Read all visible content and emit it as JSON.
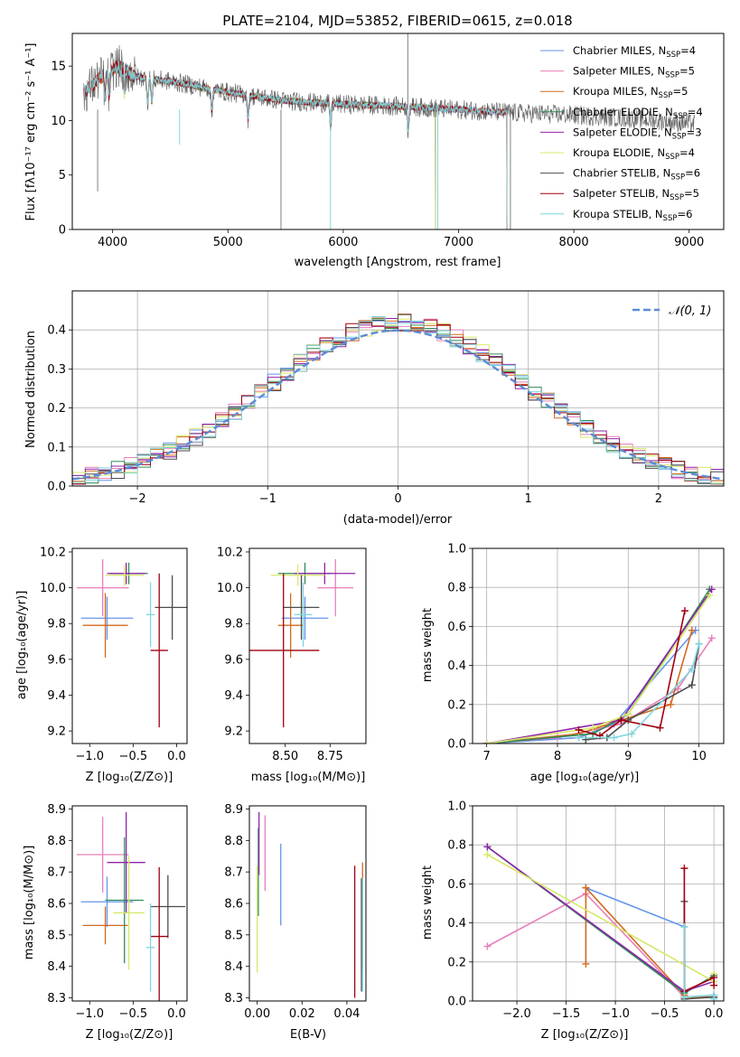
{
  "colors": {
    "Chabrier MILES": "#6495ed",
    "Salpeter MILES": "#e87fb8",
    "Kroupa MILES": "#d2691e",
    "Chabrier ELODIE": "#2e8b57",
    "Salpeter ELODIE": "#8e24aa",
    "Kroupa ELODIE": "#d7e86a",
    "Chabrier STELIB": "#4d4d4d",
    "Salpeter STELIB": "#a00010",
    "Kroupa STELIB": "#7fd6dc"
  },
  "chart_data": [
    {
      "id": "spectrum",
      "type": "line",
      "title": "PLATE=2104, MJD=53852, FIBERID=0615, z=0.018",
      "xlabel": "wavelength [Angstrom, rest frame]",
      "ylabel": "Flux [fλ10⁻¹⁷ erg cm⁻² s⁻¹ A⁻¹]",
      "xlim": [
        3650,
        9300
      ],
      "ylim": [
        0,
        18
      ],
      "xticks": [
        4000,
        5000,
        6000,
        7000,
        8000,
        9000
      ],
      "yticks": [
        0,
        5,
        10,
        15
      ],
      "continuum": {
        "x": [
          3750,
          3900,
          4050,
          4200,
          4500,
          4800,
          5000,
          5500,
          6000,
          6500,
          7000,
          7500,
          8000,
          8500,
          9050
        ],
        "y": [
          12.5,
          14.0,
          15.0,
          14.0,
          13.6,
          13.0,
          12.6,
          11.8,
          11.5,
          11.3,
          11.0,
          10.7,
          10.5,
          10.2,
          9.7
        ]
      },
      "series_ranges": [
        {
          "name": "Chabrier MILES",
          "xmin": 3750,
          "xmax": 7420
        },
        {
          "name": "Salpeter MILES",
          "xmin": 3750,
          "xmax": 7420
        },
        {
          "name": "Kroupa MILES",
          "xmin": 3750,
          "xmax": 7420
        },
        {
          "name": "Chabrier ELODIE",
          "xmin": 4050,
          "xmax": 6800
        },
        {
          "name": "Salpeter ELODIE",
          "xmin": 4050,
          "xmax": 6800
        },
        {
          "name": "Kroupa ELODIE",
          "xmin": 4050,
          "xmax": 6800
        },
        {
          "name": "Chabrier STELIB",
          "xmin": 3750,
          "xmax": 9050
        },
        {
          "name": "Salpeter STELIB",
          "xmin": 3750,
          "xmax": 7420
        },
        {
          "name": "Kroupa STELIB",
          "xmin": 3750,
          "xmax": 7420
        }
      ],
      "legend": [
        {
          "name": "Chabrier MILES",
          "nssp": "4"
        },
        {
          "name": "Salpeter MILES",
          "nssp": "5"
        },
        {
          "name": "Kroupa MILES",
          "nssp": "5"
        },
        {
          "name": "Chabrier ELODIE",
          "nssp": "4"
        },
        {
          "name": "Salpeter ELODIE",
          "nssp": "3"
        },
        {
          "name": "Kroupa ELODIE",
          "nssp": "4"
        },
        {
          "name": "Chabrier STELIB",
          "nssp": "6"
        },
        {
          "name": "Salpeter STELIB",
          "nssp": "5"
        },
        {
          "name": "Kroupa STELIB",
          "nssp": "6"
        }
      ],
      "legend_position": "upper right"
    },
    {
      "id": "residuals",
      "type": "histogram",
      "xlabel": "(data-model)/error",
      "ylabel": "Normed distribution",
      "xlim": [
        -2.5,
        2.5
      ],
      "ylim": [
        0,
        0.5
      ],
      "xticks": [
        -2,
        -1,
        0,
        1,
        2
      ],
      "xtick_labels": [
        "−2",
        "−1",
        "0",
        "1",
        "2"
      ],
      "yticks": [
        0.0,
        0.1,
        0.2,
        0.3,
        0.4
      ],
      "bin_width": 0.1,
      "gaussian_label": "𝒩(0, 1)",
      "legend_position": "upper right",
      "grid": true
    },
    {
      "id": "age-vs-Z",
      "type": "errorbar",
      "xlabel": "Z [log₁₀(Z/Z⊙)]",
      "ylabel": "age  [log₁₀(age/yr)]",
      "xlim": [
        -1.2,
        0.12
      ],
      "ylim": [
        9.13,
        10.22
      ],
      "xticks": [
        -1.0,
        -0.5,
        0.0
      ],
      "xtick_labels": [
        "−1.0",
        "−0.5",
        "0.0"
      ],
      "yticks": [
        9.2,
        9.4,
        9.6,
        9.8,
        10.0,
        10.2
      ],
      "points": [
        {
          "name": "Chabrier MILES",
          "x": -0.8,
          "xerr": 0.3,
          "y": 9.83,
          "yerr": 0.12
        },
        {
          "name": "Salpeter MILES",
          "x": -0.85,
          "xerr": 0.3,
          "y": 10.0,
          "yerr": 0.16
        },
        {
          "name": "Kroupa MILES",
          "x": -0.82,
          "xerr": 0.26,
          "y": 9.79,
          "yerr": 0.18
        },
        {
          "name": "Chabrier ELODIE",
          "x": -0.55,
          "xerr": 0.22,
          "y": 10.08,
          "yerr": 0.06
        },
        {
          "name": "Salpeter ELODIE",
          "x": -0.58,
          "xerr": 0.22,
          "y": 10.08,
          "yerr": 0.06
        },
        {
          "name": "Kroupa ELODIE",
          "x": -0.6,
          "xerr": 0.22,
          "y": 10.07,
          "yerr": 0.06
        },
        {
          "name": "Chabrier STELIB",
          "x": -0.05,
          "xerr": 0.2,
          "y": 9.89,
          "yerr": 0.18
        },
        {
          "name": "Salpeter STELIB",
          "x": -0.2,
          "xerr": 0.1,
          "y": 9.65,
          "yerr": 0.43
        },
        {
          "name": "Kroupa STELIB",
          "x": -0.3,
          "xerr": 0.05,
          "y": 9.85,
          "yerr": 0.18
        }
      ]
    },
    {
      "id": "age-vs-mass",
      "type": "errorbar",
      "xlabel": "mass [log₁₀(M/M⊙)]",
      "ylabel": "",
      "xlim": [
        8.3,
        8.95
      ],
      "ylim": [
        9.13,
        10.22
      ],
      "xticks": [
        8.5,
        8.75
      ],
      "xtick_labels": [
        "8.50",
        "8.75"
      ],
      "yticks": [
        9.2,
        9.4,
        9.6,
        9.8,
        10.0,
        10.2
      ],
      "points": [
        {
          "name": "Chabrier MILES",
          "x": 8.61,
          "xerr": 0.13,
          "y": 9.83,
          "yerr": 0.12
        },
        {
          "name": "Salpeter MILES",
          "x": 8.78,
          "xerr": 0.1,
          "y": 10.0,
          "yerr": 0.16
        },
        {
          "name": "Kroupa MILES",
          "x": 8.53,
          "xerr": 0.07,
          "y": 9.79,
          "yerr": 0.18
        },
        {
          "name": "Chabrier ELODIE",
          "x": 8.61,
          "xerr": 0.15,
          "y": 10.08,
          "yerr": 0.06
        },
        {
          "name": "Salpeter ELODIE",
          "x": 8.72,
          "xerr": 0.17,
          "y": 10.08,
          "yerr": 0.06
        },
        {
          "name": "Kroupa ELODIE",
          "x": 8.57,
          "xerr": 0.15,
          "y": 10.07,
          "yerr": 0.06
        },
        {
          "name": "Chabrier STELIB",
          "x": 8.59,
          "xerr": 0.1,
          "y": 9.89,
          "yerr": 0.18
        },
        {
          "name": "Salpeter STELIB",
          "x": 8.49,
          "xerr": 0.2,
          "y": 9.65,
          "yerr": 0.43
        },
        {
          "name": "Kroupa STELIB",
          "x": 8.6,
          "xerr": 0.05,
          "y": 9.85,
          "yerr": 0.18
        }
      ]
    },
    {
      "id": "mass-weight-vs-age",
      "type": "line",
      "xlabel": "age  [log₁₀(age/yr)]",
      "ylabel": "mass weight",
      "xlim": [
        6.8,
        10.35
      ],
      "ylim": [
        0,
        1.0
      ],
      "xticks": [
        7,
        8,
        9,
        10
      ],
      "yticks": [
        0.0,
        0.2,
        0.4,
        0.6,
        0.8,
        1.0
      ],
      "series": [
        {
          "name": "Chabrier MILES",
          "x": [
            7.0,
            8.3,
            8.8,
            9.95
          ],
          "y": [
            0.0,
            0.03,
            0.1,
            0.58
          ]
        },
        {
          "name": "Salpeter MILES",
          "x": [
            7.0,
            8.0,
            8.9,
            9.7,
            10.18
          ],
          "y": [
            0.0,
            0.03,
            0.1,
            0.28,
            0.54
          ]
        },
        {
          "name": "Kroupa MILES",
          "x": [
            7.0,
            8.3,
            8.9,
            9.6,
            9.9
          ],
          "y": [
            0.0,
            0.05,
            0.12,
            0.2,
            0.58
          ]
        },
        {
          "name": "Chabrier ELODIE",
          "x": [
            7.0,
            8.5,
            9.0,
            10.15
          ],
          "y": [
            0.0,
            0.05,
            0.15,
            0.79
          ]
        },
        {
          "name": "Salpeter ELODIE",
          "x": [
            7.0,
            8.9,
            10.18
          ],
          "y": [
            0.0,
            0.12,
            0.79
          ]
        },
        {
          "name": "Kroupa ELODIE",
          "x": [
            7.0,
            8.5,
            9.0,
            10.15
          ],
          "y": [
            0.0,
            0.08,
            0.15,
            0.76
          ]
        },
        {
          "name": "Chabrier STELIB",
          "x": [
            8.4,
            8.7,
            9.0,
            9.9,
            10.0
          ],
          "y": [
            0.02,
            0.03,
            0.12,
            0.3,
            0.51
          ]
        },
        {
          "name": "Salpeter STELIB",
          "x": [
            8.3,
            8.6,
            8.9,
            9.45,
            9.8
          ],
          "y": [
            0.07,
            0.04,
            0.12,
            0.08,
            0.68
          ]
        },
        {
          "name": "Kroupa STELIB",
          "x": [
            8.3,
            8.8,
            9.05,
            9.9,
            10.0
          ],
          "y": [
            0.03,
            0.03,
            0.05,
            0.38,
            0.51
          ]
        }
      ]
    },
    {
      "id": "mass-vs-Z",
      "type": "errorbar",
      "xlabel": "Z [log₁₀(Z/Z⊙)]",
      "ylabel": "mass [log₁₀(M/M⊙)]",
      "xlim": [
        -1.2,
        0.12
      ],
      "ylim": [
        8.29,
        8.91
      ],
      "xticks": [
        -1.0,
        -0.5,
        0.0
      ],
      "xtick_labels": [
        "−1.0",
        "−0.5",
        "0.0"
      ],
      "yticks": [
        8.3,
        8.4,
        8.5,
        8.6,
        8.7,
        8.8,
        8.9
      ],
      "points": [
        {
          "name": "Chabrier MILES",
          "x": -0.8,
          "xerr": 0.3,
          "y": 8.605,
          "yerr": 0.08
        },
        {
          "name": "Salpeter MILES",
          "x": -0.85,
          "xerr": 0.3,
          "y": 8.755,
          "yerr": 0.12
        },
        {
          "name": "Kroupa MILES",
          "x": -0.82,
          "xerr": 0.26,
          "y": 8.53,
          "yerr": 0.06
        },
        {
          "name": "Chabrier ELODIE",
          "x": -0.6,
          "xerr": 0.22,
          "y": 8.61,
          "yerr": 0.2
        },
        {
          "name": "Salpeter ELODIE",
          "x": -0.58,
          "xerr": 0.22,
          "y": 8.73,
          "yerr": 0.16
        },
        {
          "name": "Kroupa ELODIE",
          "x": -0.55,
          "xerr": 0.18,
          "y": 8.57,
          "yerr": 0.18
        },
        {
          "name": "Chabrier STELIB",
          "x": -0.1,
          "xerr": 0.2,
          "y": 8.59,
          "yerr": 0.1
        },
        {
          "name": "Salpeter STELIB",
          "x": -0.2,
          "xerr": 0.1,
          "y": 8.495,
          "yerr": 0.22
        },
        {
          "name": "Kroupa STELIB",
          "x": -0.3,
          "xerr": 0.05,
          "y": 8.46,
          "yerr": 0.14
        }
      ]
    },
    {
      "id": "mass-vs-ebv",
      "type": "errorbar",
      "xlabel": "E(B-V)",
      "ylabel": "",
      "xlim": [
        -0.0035,
        0.0485
      ],
      "ylim": [
        8.29,
        8.91
      ],
      "xticks": [
        0.0,
        0.02,
        0.04
      ],
      "xtick_labels": [
        "0.00",
        "0.02",
        "0.04"
      ],
      "yticks": [
        8.3,
        8.4,
        8.5,
        8.6,
        8.7,
        8.8,
        8.9
      ],
      "points": [
        {
          "name": "Chabrier MILES",
          "x": 0.0105,
          "xerr": 0,
          "y": 8.66,
          "yerr": 0.13
        },
        {
          "name": "Salpeter MILES",
          "x": 0.0035,
          "xerr": 0,
          "y": 8.76,
          "yerr": 0.12
        },
        {
          "name": "Kroupa MILES",
          "x": 0.047,
          "xerr": 0,
          "y": 8.56,
          "yerr": 0.17
        },
        {
          "name": "Chabrier ELODIE",
          "x": 0.0005,
          "xerr": 0,
          "y": 8.7,
          "yerr": 0.14
        },
        {
          "name": "Salpeter ELODIE",
          "x": 0.0008,
          "xerr": 0,
          "y": 8.79,
          "yerr": 0.1
        },
        {
          "name": "Kroupa ELODIE",
          "x": 0.0,
          "xerr": 0,
          "y": 8.55,
          "yerr": 0.17
        },
        {
          "name": "Chabrier STELIB",
          "x": 0.0465,
          "xerr": 0,
          "y": 8.5,
          "yerr": 0.18
        },
        {
          "name": "Salpeter STELIB",
          "x": 0.0435,
          "xerr": 0,
          "y": 8.51,
          "yerr": 0.21
        },
        {
          "name": "Kroupa STELIB",
          "x": 0.047,
          "xerr": 0,
          "y": 8.5,
          "yerr": 0.18
        }
      ]
    },
    {
      "id": "mass-weight-vs-Z",
      "type": "line",
      "xlabel": "Z [log₁₀(Z/Z⊙)]",
      "ylabel": "mass weight",
      "xlim": [
        -2.45,
        0.1
      ],
      "ylim": [
        0,
        1.0
      ],
      "xticks": [
        -2.0,
        -1.5,
        -1.0,
        -0.5,
        0.0
      ],
      "xtick_labels": [
        "−2.0",
        "−1.5",
        "−1.0",
        "−0.5",
        "0.0"
      ],
      "yticks": [
        0.0,
        0.2,
        0.4,
        0.6,
        0.8,
        1.0
      ],
      "series": [
        {
          "name": "Chabrier MILES",
          "x": [
            -1.3,
            -0.3,
            -0.3,
            0.0
          ],
          "y": [
            0.58,
            0.38,
            0.02,
            0.02
          ]
        },
        {
          "name": "Salpeter MILES",
          "x": [
            -2.3,
            -1.3,
            -0.3,
            0.0
          ],
          "y": [
            0.28,
            0.55,
            0.02,
            0.03
          ]
        },
        {
          "name": "Kroupa MILES",
          "x": [
            -1.3,
            -1.3,
            -0.3,
            -0.3,
            0.0
          ],
          "y": [
            0.19,
            0.58,
            0.03,
            0.02,
            0.02
          ]
        },
        {
          "name": "Chabrier ELODIE",
          "x": [
            -2.3,
            -0.3,
            0.0
          ],
          "y": [
            0.79,
            0.04,
            0.13
          ]
        },
        {
          "name": "Salpeter ELODIE",
          "x": [
            -2.3,
            -0.3,
            0.0
          ],
          "y": [
            0.79,
            0.05,
            0.1
          ]
        },
        {
          "name": "Kroupa ELODIE",
          "x": [
            -2.3,
            0.0,
            0.0
          ],
          "y": [
            0.75,
            0.1,
            0.14
          ]
        },
        {
          "name": "Chabrier STELIB",
          "x": [
            -0.3,
            -0.3,
            0.0,
            0.0
          ],
          "y": [
            0.51,
            0.01,
            0.02,
            0.02
          ]
        },
        {
          "name": "Salpeter STELIB",
          "x": [
            -0.3,
            -0.3,
            0.0,
            0.0
          ],
          "y": [
            0.68,
            0.05,
            0.12,
            0.08
          ]
        },
        {
          "name": "Kroupa STELIB",
          "x": [
            -0.3,
            -0.3,
            0.0,
            0.0
          ],
          "y": [
            0.38,
            0.02,
            0.03,
            0.01
          ]
        }
      ]
    }
  ]
}
